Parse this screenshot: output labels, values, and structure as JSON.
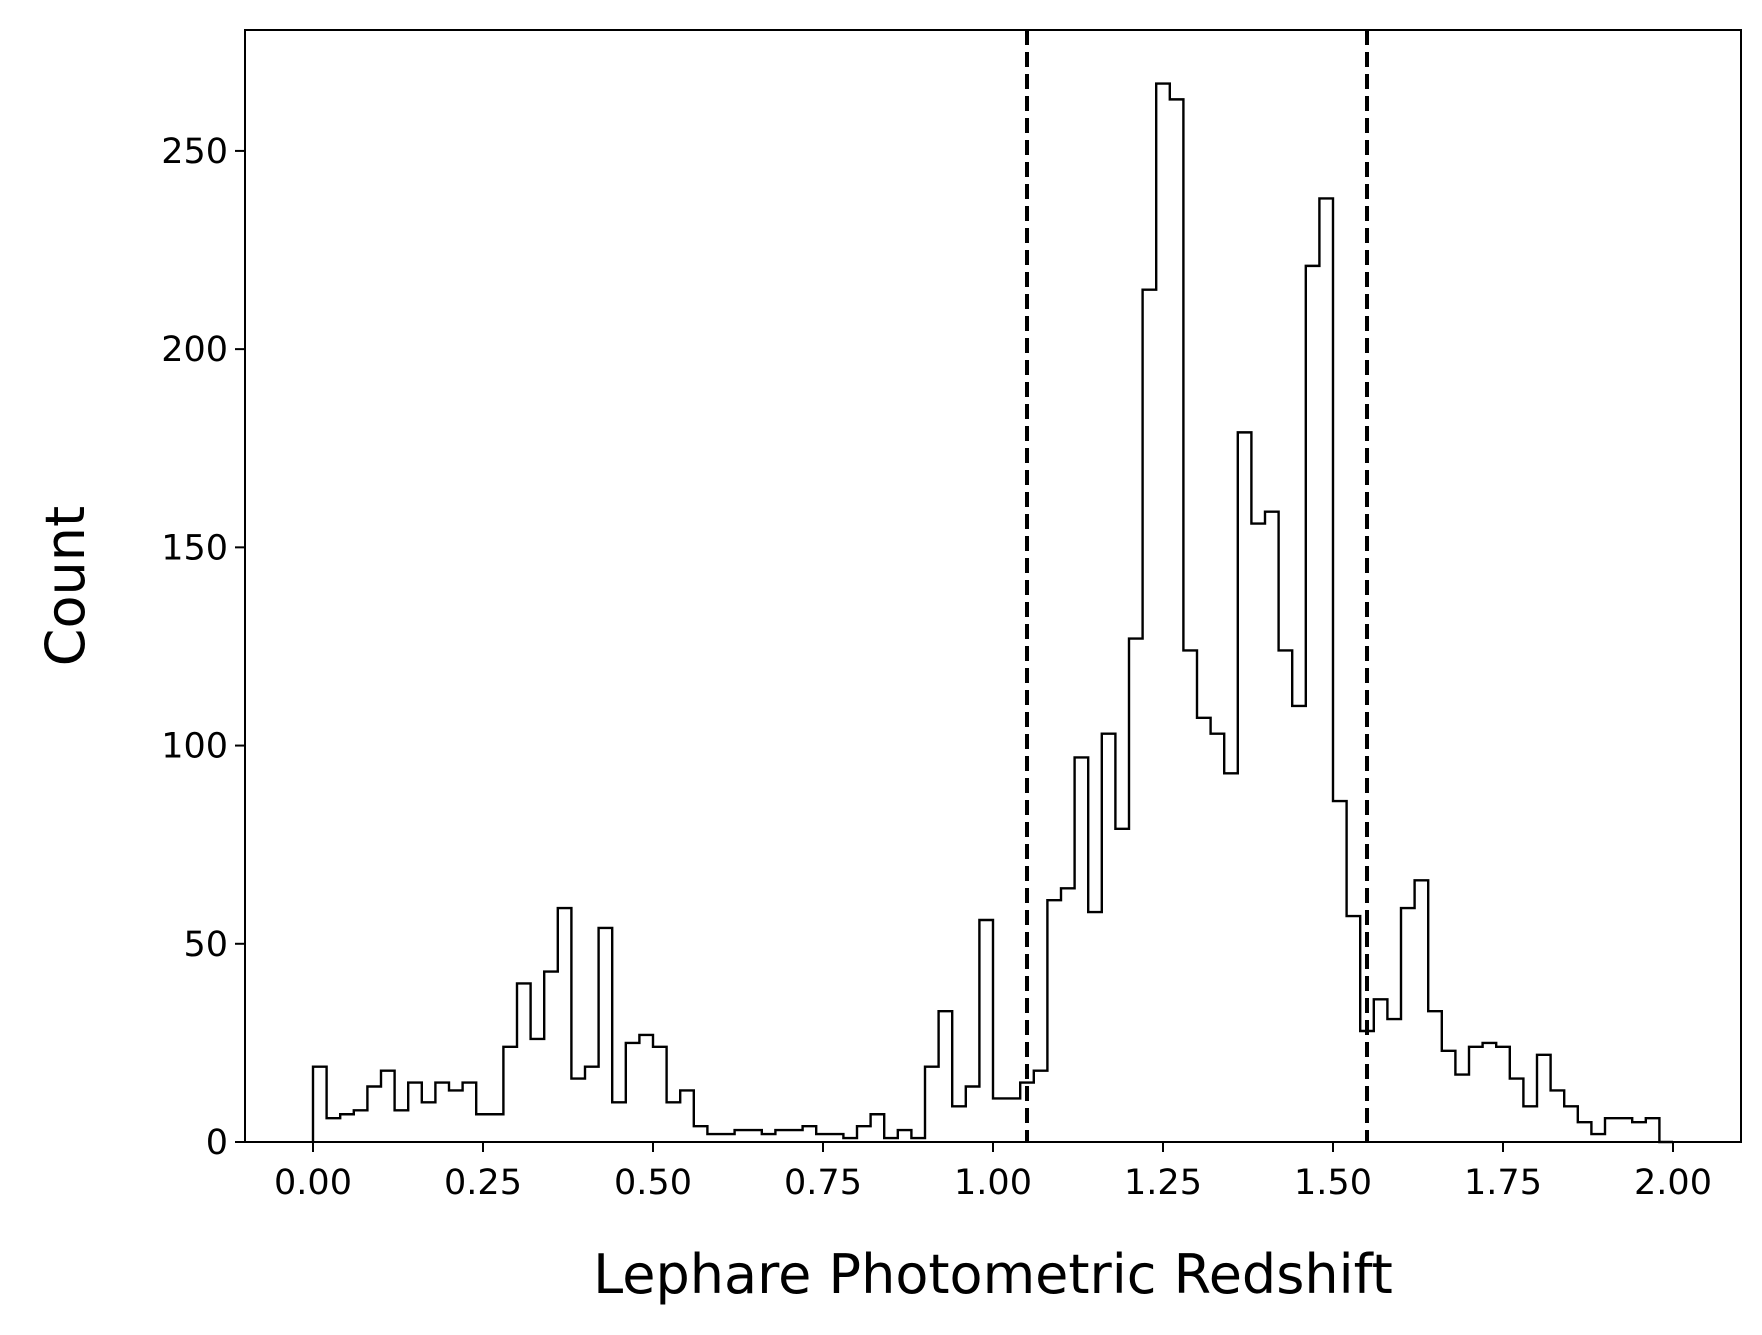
{
  "chart_data": {
    "type": "histogram",
    "xlabel": "Lephare Photometric Redshift",
    "ylabel": "Count",
    "xlim": [
      -0.1,
      2.1
    ],
    "ylim": [
      0,
      280.5
    ],
    "xticks": [
      "0.00",
      "0.25",
      "0.50",
      "0.75",
      "1.00",
      "1.25",
      "1.50",
      "1.75",
      "2.00"
    ],
    "yticks": [
      "0",
      "50",
      "100",
      "150",
      "200",
      "250"
    ],
    "bin_range": [
      0.0,
      2.0
    ],
    "bin_width": 0.02,
    "counts": [
      19,
      6,
      7,
      8,
      14,
      18,
      8,
      15,
      10,
      15,
      13,
      15,
      7,
      7,
      24,
      40,
      26,
      43,
      59,
      16,
      19,
      54,
      10,
      25,
      27,
      24,
      10,
      13,
      4,
      2,
      2,
      3,
      3,
      2,
      3,
      3,
      4,
      2,
      2,
      1,
      4,
      7,
      1,
      3,
      1,
      19,
      33,
      9,
      14,
      56,
      11,
      11,
      15,
      18,
      61,
      64,
      97,
      58,
      103,
      79,
      127,
      215,
      267,
      263,
      124,
      107,
      103,
      93,
      179,
      156,
      159,
      124,
      110,
      221,
      238,
      86,
      57,
      28,
      36,
      31,
      59,
      66,
      33,
      23,
      17,
      24,
      25,
      24,
      16,
      9,
      22,
      13,
      9,
      5,
      2,
      6,
      6,
      5,
      6,
      0
    ],
    "vlines": [
      1.05,
      1.55
    ],
    "vline_style": "dashed",
    "line_color": "#000000",
    "grid": false,
    "legend": false
  }
}
